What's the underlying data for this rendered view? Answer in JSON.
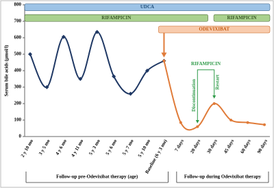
{
  "chart_data": {
    "type": "line",
    "y_label": "Serum bile acids (µmol/l)",
    "categories": [
      "2 y 10 mo",
      "3 y 5 mo",
      "4 y 6 mo",
      "4 y 11 mo",
      "5 y 3 mo",
      "5 y 6 mo",
      "5 y 7 mo",
      "5 y 10 mo",
      "Baseline (6 y 3 mo)",
      "7 days",
      "20 days",
      "30 days",
      "45 days",
      "60 days",
      "90 days"
    ],
    "series": [
      {
        "color": "#1f3864",
        "values": [
          500,
          300,
          605,
          350,
          635,
          365,
          260,
          400,
          460,
          null,
          null,
          null,
          null,
          null,
          null
        ]
      },
      {
        "color": "#e07b39",
        "values": [
          null,
          null,
          null,
          null,
          null,
          null,
          null,
          null,
          460,
          85,
          60,
          200,
          100,
          85,
          72
        ]
      }
    ],
    "ylim": [
      0,
      800
    ],
    "yticks": [
      0,
      100,
      200,
      300,
      400,
      500,
      600,
      700,
      800
    ],
    "therapy_bars": [
      {
        "label": "UDCA",
        "color": "#9dc3e6",
        "text_color": "#1f4e79"
      },
      {
        "label": "RIFAMPICIN",
        "color": "#a9d18e",
        "text_color": "#375623"
      },
      {
        "label": "RIFAMPICIN",
        "color": "#a9d18e",
        "text_color": "#375623"
      },
      {
        "label": "ODEVIXIBAT",
        "color": "#f8cbad",
        "text_color": "#c55a11"
      }
    ],
    "rifampicin_note": {
      "title": "RIFAMPICIN",
      "stop": "Discontinuation",
      "restart": "Restart"
    },
    "periods": [
      "Follow-up pre-Odevixibat therapy (age)",
      "Follow-up during Odevixibat therapy"
    ]
  }
}
